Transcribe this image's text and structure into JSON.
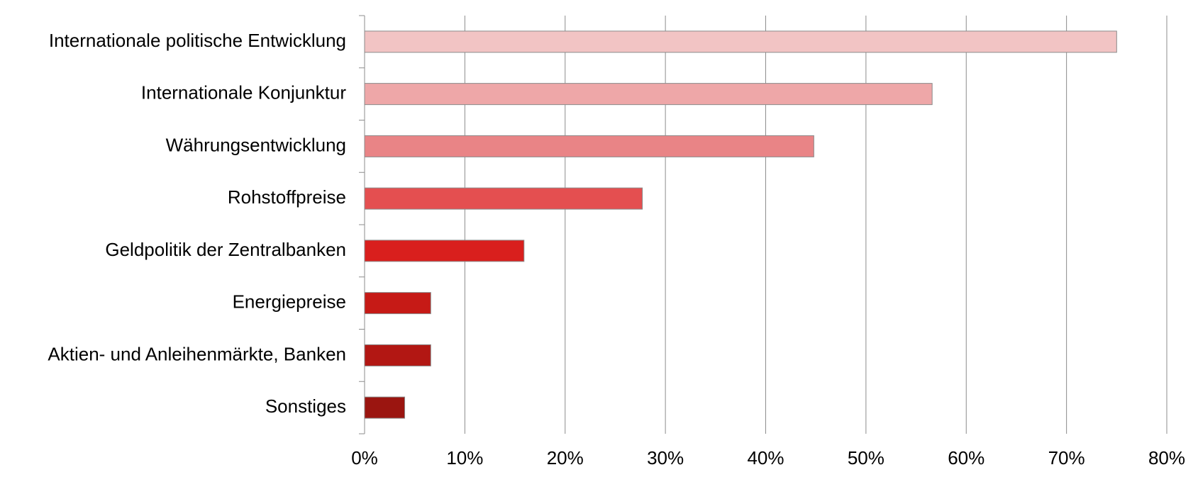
{
  "chart_data": {
    "type": "bar",
    "orientation": "horizontal",
    "categories": [
      "Internationale politische Entwicklung",
      "Internationale Konjunktur",
      "Währungsentwicklung",
      "Rohstoffpreise",
      "Geldpolitik der Zentralbanken",
      "Energiepreise",
      "Aktien- und Anleihenmärkte, Banken",
      "Sonstiges"
    ],
    "values": [
      75,
      56.6,
      44.8,
      27.7,
      15.9,
      6.6,
      6.6,
      4.0
    ],
    "colors": [
      "#f2c4c4",
      "#eea7a8",
      "#e98486",
      "#e44f50",
      "#d91f1d",
      "#c61a16",
      "#b21713",
      "#9b1510"
    ],
    "xlim": [
      0,
      80
    ],
    "xticks": [
      {
        "value": 0,
        "label": "0%"
      },
      {
        "value": 10,
        "label": "10%"
      },
      {
        "value": 20,
        "label": "20%"
      },
      {
        "value": 30,
        "label": "30%"
      },
      {
        "value": 40,
        "label": "40%"
      },
      {
        "value": 50,
        "label": "50%"
      },
      {
        "value": 60,
        "label": "60%"
      },
      {
        "value": 70,
        "label": "70%"
      },
      {
        "value": 80,
        "label": "80%"
      }
    ],
    "grid": true
  }
}
